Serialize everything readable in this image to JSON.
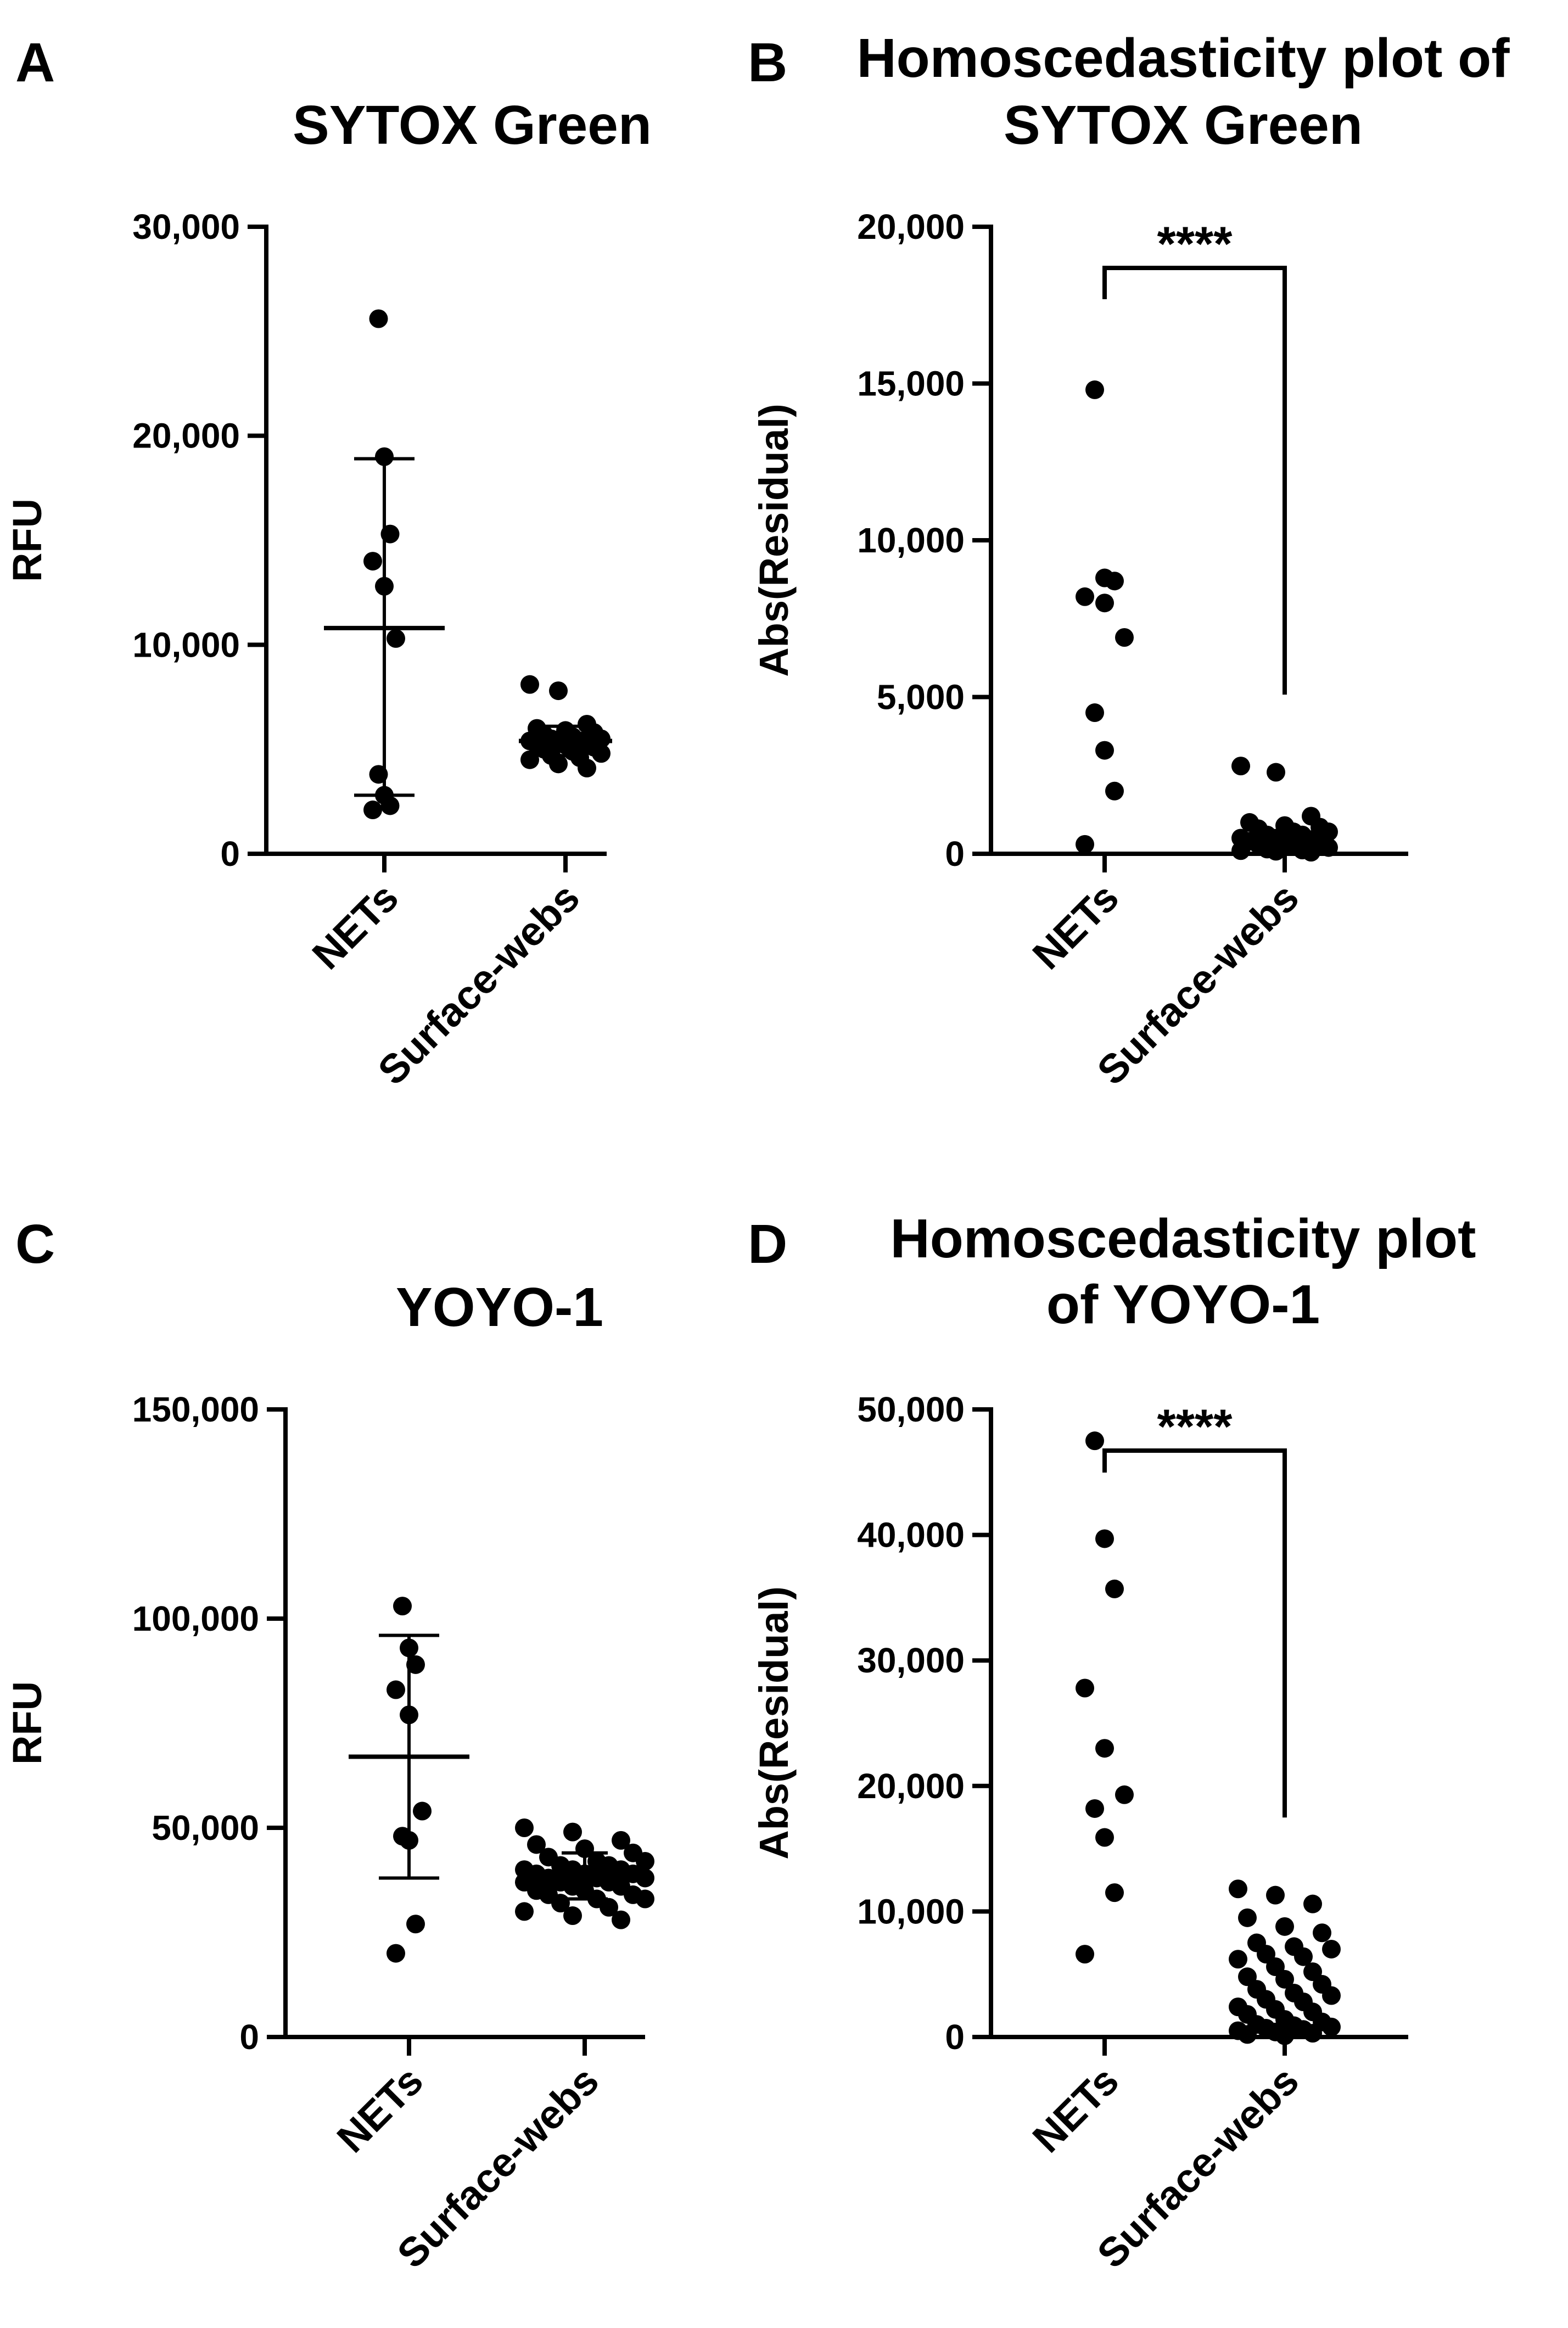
{
  "chart_data": [
    {
      "panel": "A",
      "type": "scatter",
      "title_lines": [
        "SYTOX Green"
      ],
      "ylabel": "RFU",
      "ylim": [
        0,
        30000
      ],
      "yticks": [
        0,
        10000,
        20000,
        30000
      ],
      "ytick_labels": [
        "0",
        "10,000",
        "20,000",
        "30,000"
      ],
      "categories": [
        "NETs",
        "Surface-webs"
      ],
      "series": [
        {
          "name": "NETs",
          "values": [
            25600,
            19000,
            15300,
            14000,
            12800,
            10300,
            3800,
            2800,
            2300,
            2100
          ],
          "mean": 10800,
          "sd_low": 2800,
          "sd_high": 18900
        },
        {
          "name": "Surface-webs",
          "values": [
            8100,
            7800,
            6200,
            6000,
            5900,
            5800,
            5700,
            5600,
            5500,
            5500,
            5400,
            5400,
            5300,
            5300,
            5200,
            5200,
            5100,
            5000,
            4900,
            4800,
            4700,
            4600,
            4500,
            4300,
            4100
          ],
          "mean": 5400,
          "sd_low": 4700,
          "sd_high": 6100
        }
      ],
      "significance": ""
    },
    {
      "panel": "B",
      "type": "scatter",
      "title_lines": [
        "Homoscedasticity plot of",
        "SYTOX Green"
      ],
      "ylabel": "Abs(Residual)",
      "ylim": [
        0,
        20000
      ],
      "yticks": [
        0,
        5000,
        10000,
        15000,
        20000
      ],
      "ytick_labels": [
        "0",
        "5,000",
        "10,000",
        "15,000",
        "20,000"
      ],
      "categories": [
        "NETs",
        "Surface-webs"
      ],
      "series": [
        {
          "name": "NETs",
          "values": [
            14800,
            8800,
            8700,
            8200,
            8000,
            6900,
            4500,
            3300,
            2000,
            300
          ]
        },
        {
          "name": "Surface-webs",
          "values": [
            2800,
            2600,
            1200,
            1000,
            900,
            850,
            800,
            700,
            700,
            600,
            600,
            500,
            500,
            450,
            400,
            350,
            300,
            300,
            250,
            200,
            150,
            120,
            100,
            80,
            50
          ]
        }
      ],
      "significance": "****"
    },
    {
      "panel": "C",
      "type": "scatter",
      "title_lines": [
        "YOYO-1"
      ],
      "ylabel": "RFU",
      "ylim": [
        0,
        150000
      ],
      "yticks": [
        0,
        50000,
        100000,
        150000
      ],
      "ytick_labels": [
        "0",
        "50,000",
        "100,000",
        "150,000"
      ],
      "categories": [
        "NETs",
        "Surface-webs"
      ],
      "series": [
        {
          "name": "NETs",
          "values": [
            103000,
            93000,
            89000,
            83000,
            77000,
            54000,
            48000,
            47000,
            27000,
            20000
          ],
          "mean": 67000,
          "sd_low": 38000,
          "sd_high": 96000
        },
        {
          "name": "Surface-webs",
          "values": [
            50000,
            49000,
            47000,
            46000,
            45000,
            44000,
            43000,
            42000,
            42000,
            41000,
            41000,
            40000,
            40000,
            40000,
            39000,
            39000,
            39000,
            38000,
            38000,
            38000,
            37000,
            37000,
            37000,
            36000,
            36000,
            35000,
            35000,
            34000,
            34000,
            33000,
            33000,
            32000,
            31000,
            30000,
            29000,
            28000
          ],
          "mean": 38500,
          "sd_low": 33000,
          "sd_high": 44000
        }
      ],
      "significance": ""
    },
    {
      "panel": "D",
      "type": "scatter",
      "title_lines": [
        "Homoscedasticity plot",
        "of YOYO-1"
      ],
      "ylabel": "Abs(Residual)",
      "ylim": [
        0,
        50000
      ],
      "yticks": [
        0,
        10000,
        20000,
        30000,
        40000,
        50000
      ],
      "ytick_labels": [
        "0",
        "10,000",
        "20,000",
        "30,000",
        "40,000",
        "50,000"
      ],
      "categories": [
        "NETs",
        "Surface-webs"
      ],
      "series": [
        {
          "name": "NETs",
          "values": [
            47500,
            39700,
            35700,
            27800,
            23000,
            19300,
            18200,
            15900,
            11500,
            6600
          ]
        },
        {
          "name": "Surface-webs",
          "values": [
            11800,
            11300,
            10600,
            9500,
            8800,
            8300,
            7500,
            7200,
            7000,
            6600,
            6400,
            6200,
            5600,
            5200,
            4800,
            4600,
            4200,
            3800,
            3500,
            3300,
            3000,
            2800,
            2400,
            2200,
            2000,
            1800,
            1400,
            1200,
            1000,
            900,
            800,
            700,
            600,
            500,
            400,
            300,
            200,
            100
          ]
        }
      ],
      "significance": "****"
    }
  ]
}
